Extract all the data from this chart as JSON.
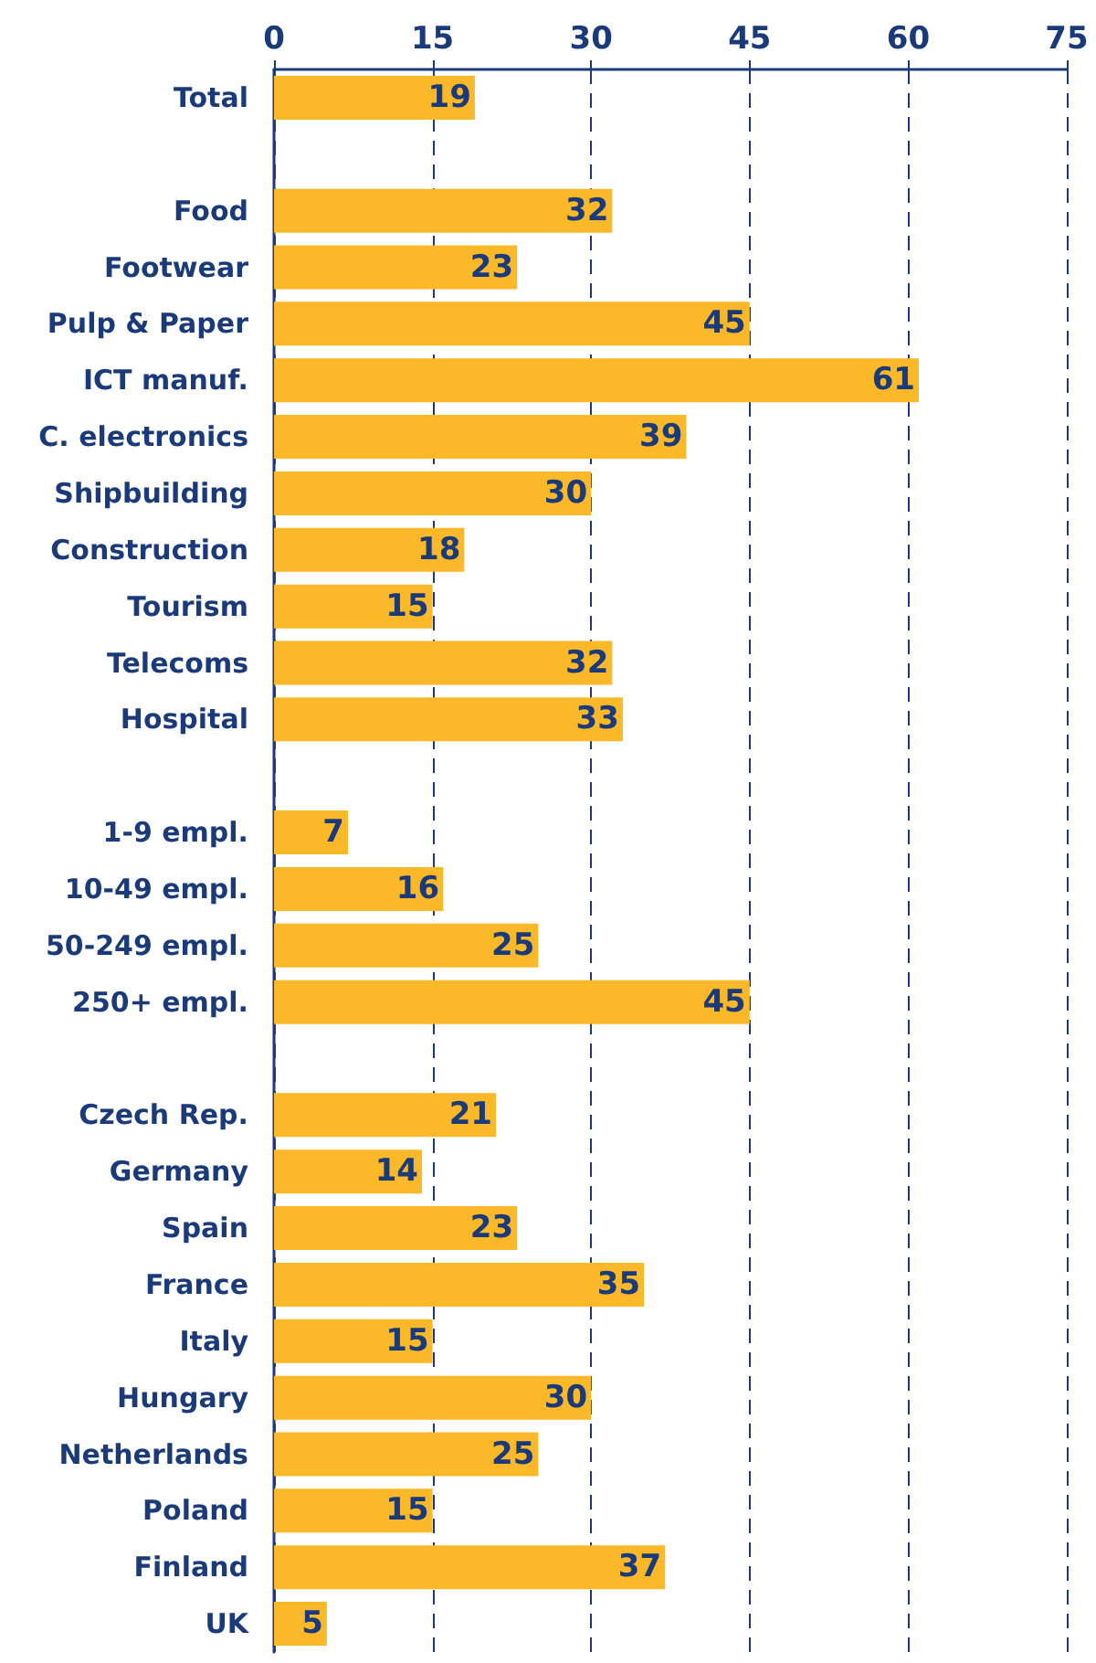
{
  "chart_data": {
    "type": "bar",
    "orientation": "horizontal",
    "categories": [
      "Total",
      null,
      "Food",
      "Footwear",
      "Pulp & Paper",
      "ICT manuf.",
      "C. electronics",
      "Shipbuilding",
      "Construction",
      "Tourism",
      "Telecoms",
      "Hospital",
      null,
      "1-9 empl.",
      "10-49 empl.",
      "50-249 empl.",
      "250+ empl.",
      null,
      "Czech Rep.",
      "Germany",
      "Spain",
      "France",
      "Italy",
      "Hungary",
      "Netherlands",
      "Poland",
      "Finland",
      "UK"
    ],
    "values": [
      19,
      null,
      32,
      23,
      45,
      61,
      39,
      30,
      18,
      15,
      32,
      33,
      null,
      7,
      16,
      25,
      45,
      null,
      21,
      14,
      23,
      35,
      15,
      30,
      25,
      15,
      37,
      5
    ],
    "color": "#fbb829",
    "xlim": [
      0,
      75
    ],
    "xticks": [
      0,
      15,
      30,
      45,
      60,
      75
    ],
    "grid": "x",
    "data_labels": true
  }
}
